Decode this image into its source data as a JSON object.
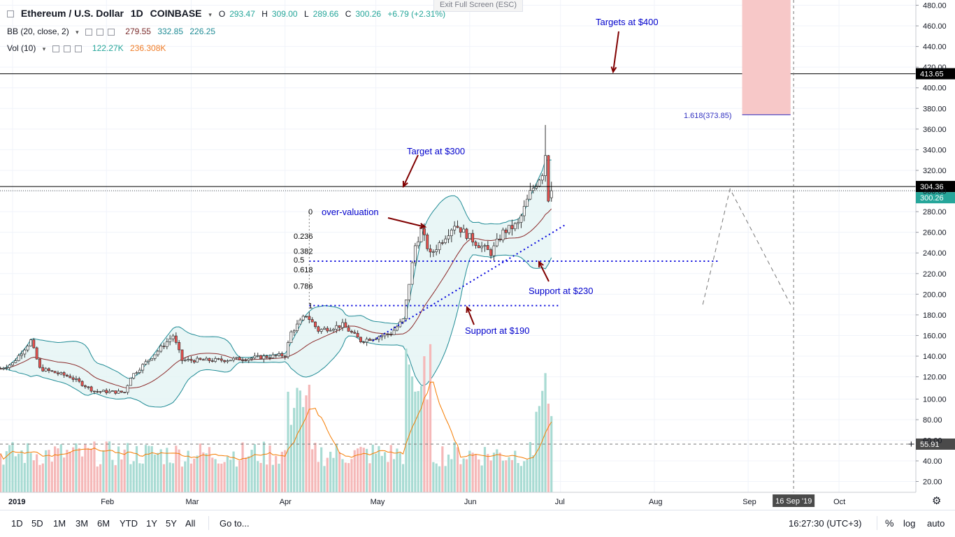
{
  "header": {
    "symbol": "Ethereum / U.S. Dollar",
    "interval": "1D",
    "exchange": "COINBASE",
    "open_label": "O",
    "open": "293.47",
    "high_label": "H",
    "high": "309.00",
    "low_label": "L",
    "low": "289.66",
    "close_label": "C",
    "close": "300.26",
    "change": "+6.79 (+2.31%)",
    "exit_fullscreen": "Exit Full Screen (ESC)"
  },
  "indicators": {
    "bb": {
      "label": "BB (20, close, 2)",
      "middle": "279.55",
      "upper": "332.85",
      "lower": "226.25"
    },
    "vol": {
      "label": "Vol (10)",
      "volume": "122.27K",
      "ma": "236.308K"
    }
  },
  "price_axis": {
    "ticks": [
      "480.00",
      "460.00",
      "440.00",
      "420.00",
      "400.00",
      "380.00",
      "360.00",
      "340.00",
      "320.00",
      "300.00",
      "280.00",
      "260.00",
      "240.00",
      "220.00",
      "200.00",
      "180.00",
      "160.00",
      "140.00",
      "120.00",
      "100.00",
      "80.00",
      "60.00",
      "40.00",
      "20.00"
    ],
    "badge_level": "413.65",
    "badge_mid": "304.36",
    "badge_last": "300.26",
    "badge_vol": "55.91"
  },
  "time_axis": {
    "labels": [
      "2019",
      "Feb",
      "Mar",
      "Apr",
      "May",
      "Jun",
      "Jul",
      "Aug",
      "Sep",
      "Oct"
    ],
    "crosshair_date": "16 Sep '19"
  },
  "annotations": {
    "targets400": "Targets at $400",
    "target300": "Target at $300",
    "overvaluation": "over-valuation",
    "support230": "Support at $230",
    "support190": "Support at $190",
    "fib_ext": "1.618(373.85)",
    "fib_levels": [
      "0",
      "0.236",
      "0.382",
      "0.5",
      "0.618",
      "0.786",
      "1"
    ]
  },
  "bottom_bar": {
    "timeframes": [
      "1D",
      "5D",
      "1M",
      "3M",
      "6M",
      "YTD",
      "1Y",
      "5Y",
      "All"
    ],
    "goto": "Go to...",
    "clock": "16:27:30 (UTC+3)",
    "percent": "%",
    "log": "log",
    "auto": "auto"
  },
  "colors": {
    "up": "#26a69a",
    "down": "#ef5350",
    "bb_mid": "#8b2a2a",
    "bb_band": "#1f8b95",
    "bb_fill": "#e3f4f4",
    "vol_up": "#a8dbd3",
    "vol_down": "#f5b8b8",
    "vol_ma": "#f57c00",
    "annot_text": "#0000cc",
    "arrow": "#800000",
    "dotted": "#0000dd",
    "target_box": "#f7c8c8"
  },
  "chart_data": {
    "type": "candlestick",
    "title": "Ethereum / U.S. Dollar, 1D, COINBASE",
    "price_range": [
      0,
      490
    ],
    "x_range": [
      "2018-12-23",
      "2019-10-29"
    ],
    "levels": [
      {
        "price": 413.65,
        "label": "Targets at $400"
      },
      {
        "price": 304.36,
        "label": "Target at $300"
      },
      {
        "price": 232,
        "label": "Support at $230"
      },
      {
        "price": 189,
        "label": "Support at $190"
      }
    ],
    "fib_extension": {
      "label": "1.618(373.85)",
      "value": 373.85
    },
    "last_close": 300.26,
    "bb_last": {
      "middle": 279.55,
      "upper": 332.85,
      "lower": 226.25
    },
    "volume_last": "122.27K",
    "volume_ma_last": "236.308K"
  }
}
